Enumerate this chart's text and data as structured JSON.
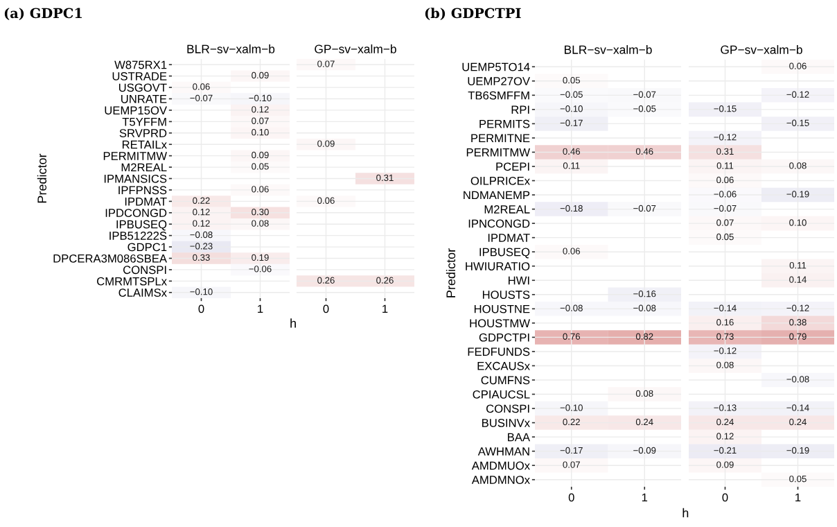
{
  "chart_data": [
    {
      "type": "heatmap",
      "title": "(a) GDPC1",
      "subtitle": "BLR−sv−xalm−b",
      "xlabel": "h",
      "ylabel": "Predictor",
      "grid": true,
      "categories": [
        "0",
        "1"
      ],
      "y_categories": [
        "W875RX1",
        "USTRADE",
        "USGOVT",
        "UNRATE",
        "UEMP15OV",
        "T5YFFM",
        "SRVPRD",
        "RETAILx",
        "PERMITMW",
        "M2REAL",
        "IPMANSICS",
        "IPFPNSS",
        "IPDMAT",
        "IPDCONGD",
        "IPBUSEQ",
        "IPB51222S",
        "GDPC1",
        "DPCERA3M086SBEA",
        "CONSPI",
        "CMRMTSPLx",
        "CLAIMSx"
      ],
      "cells": [
        [
          null,
          null
        ],
        [
          null,
          0.09
        ],
        [
          0.06,
          null
        ],
        [
          -0.07,
          -0.1
        ],
        [
          null,
          0.12
        ],
        [
          null,
          0.07
        ],
        [
          null,
          0.1
        ],
        [
          null,
          null
        ],
        [
          null,
          0.09
        ],
        [
          null,
          0.05
        ],
        [
          null,
          null
        ],
        [
          null,
          0.06
        ],
        [
          0.22,
          null
        ],
        [
          0.12,
          0.3
        ],
        [
          0.12,
          0.08
        ],
        [
          -0.08,
          null
        ],
        [
          -0.23,
          null
        ],
        [
          0.33,
          0.19
        ],
        [
          null,
          -0.06
        ],
        [
          null,
          null
        ],
        [
          -0.1,
          null
        ]
      ],
      "cell_labels": [
        [
          null,
          null
        ],
        [
          null,
          "0.09"
        ],
        [
          "0.06",
          null
        ],
        [
          "−0.07",
          "−0.10"
        ],
        [
          null,
          "0.12"
        ],
        [
          null,
          "0.07"
        ],
        [
          null,
          "0.10"
        ],
        [
          null,
          null
        ],
        [
          null,
          "0.09"
        ],
        [
          null,
          "0.05"
        ],
        [
          null,
          null
        ],
        [
          null,
          "0.06"
        ],
        [
          "0.22",
          null
        ],
        [
          "0.12",
          "0.30"
        ],
        [
          "0.12",
          "0.08"
        ],
        [
          "−0.08",
          null
        ],
        [
          "−0.23",
          null
        ],
        [
          "0.33",
          "0.19"
        ],
        [
          null,
          "−0.06"
        ],
        [
          null,
          null
        ],
        [
          "−0.10",
          null
        ]
      ]
    },
    {
      "type": "heatmap",
      "subtitle": "GP−sv−xalm−b",
      "grid": true,
      "tick_labels": "x",
      "categories": [
        "0",
        "1"
      ],
      "y_categories": [
        "W875RX1",
        "USTRADE",
        "USGOVT",
        "UNRATE",
        "UEMP15OV",
        "T5YFFM",
        "SRVPRD",
        "RETAILx",
        "PERMITMW",
        "M2REAL",
        "IPMANSICS",
        "IPFPNSS",
        "IPDMAT",
        "IPDCONGD",
        "IPBUSEQ",
        "IPB51222S",
        "GDPC1",
        "DPCERA3M086SBEA",
        "CONSPI",
        "CMRMTSPLx",
        "CLAIMSx"
      ],
      "cells": [
        [
          0.07,
          null
        ],
        [
          null,
          null
        ],
        [
          null,
          null
        ],
        [
          null,
          null
        ],
        [
          null,
          null
        ],
        [
          null,
          null
        ],
        [
          null,
          null
        ],
        [
          0.09,
          null
        ],
        [
          null,
          null
        ],
        [
          null,
          null
        ],
        [
          null,
          0.31
        ],
        [
          null,
          null
        ],
        [
          0.06,
          null
        ],
        [
          null,
          null
        ],
        [
          null,
          null
        ],
        [
          null,
          null
        ],
        [
          null,
          null
        ],
        [
          null,
          null
        ],
        [
          null,
          null
        ],
        [
          0.26,
          0.26
        ],
        [
          null,
          null
        ]
      ],
      "cell_labels": [
        [
          "0.07",
          null
        ],
        [
          null,
          null
        ],
        [
          null,
          null
        ],
        [
          null,
          null
        ],
        [
          null,
          null
        ],
        [
          null,
          null
        ],
        [
          null,
          null
        ],
        [
          "0.09",
          null
        ],
        [
          null,
          null
        ],
        [
          null,
          null
        ],
        [
          null,
          "0.31"
        ],
        [
          null,
          null
        ],
        [
          "0.06",
          null
        ],
        [
          null,
          null
        ],
        [
          null,
          null
        ],
        [
          null,
          null
        ],
        [
          null,
          null
        ],
        [
          null,
          null
        ],
        [
          null,
          null
        ],
        [
          "0.26",
          "0.26"
        ],
        [
          null,
          null
        ]
      ]
    },
    {
      "type": "heatmap",
      "title": "(b) GDPCTPI",
      "subtitle": "BLR−sv−xalm−b",
      "xlabel": "h",
      "ylabel": "Predictor",
      "grid": true,
      "categories": [
        "0",
        "1"
      ],
      "y_categories": [
        "UEMP5TO14",
        "UEMP27OV",
        "TB6SMFFM",
        "RPI",
        "PERMITS",
        "PERMITNE",
        "PERMITMW",
        "PCEPI",
        "OILPRICEx",
        "NDMANEMP",
        "M2REAL",
        "IPNCONGD",
        "IPDMAT",
        "IPBUSEQ",
        "HWIURATIO",
        "HWI",
        "HOUSTS",
        "HOUSTNE",
        "HOUSTMW",
        "GDPCTPI",
        "FEDFUNDS",
        "EXCAUSx",
        "CUMFNS",
        "CPIAUCSL",
        "CONSPI",
        "BUSINVx",
        "BAA",
        "AWHMAN",
        "AMDMUOx",
        "AMDMNOx"
      ],
      "cells": [
        [
          null,
          null
        ],
        [
          0.05,
          null
        ],
        [
          -0.05,
          -0.07
        ],
        [
          -0.1,
          -0.05
        ],
        [
          -0.17,
          null
        ],
        [
          null,
          null
        ],
        [
          0.46,
          0.46
        ],
        [
          0.11,
          null
        ],
        [
          null,
          null
        ],
        [
          null,
          null
        ],
        [
          -0.18,
          -0.07
        ],
        [
          null,
          null
        ],
        [
          null,
          null
        ],
        [
          0.06,
          null
        ],
        [
          null,
          null
        ],
        [
          null,
          null
        ],
        [
          null,
          -0.16
        ],
        [
          -0.08,
          -0.08
        ],
        [
          null,
          null
        ],
        [
          0.76,
          0.82
        ],
        [
          null,
          null
        ],
        [
          null,
          null
        ],
        [
          null,
          null
        ],
        [
          null,
          0.08
        ],
        [
          -0.1,
          null
        ],
        [
          0.22,
          0.24
        ],
        [
          null,
          null
        ],
        [
          -0.17,
          -0.09
        ],
        [
          0.07,
          null
        ],
        [
          null,
          null
        ]
      ],
      "cell_labels": [
        [
          null,
          null
        ],
        [
          "0.05",
          null
        ],
        [
          "−0.05",
          "−0.07"
        ],
        [
          "−0.10",
          "−0.05"
        ],
        [
          "−0.17",
          null
        ],
        [
          null,
          null
        ],
        [
          "0.46",
          "0.46"
        ],
        [
          "0.11",
          null
        ],
        [
          null,
          null
        ],
        [
          null,
          null
        ],
        [
          "−0.18",
          "−0.07"
        ],
        [
          null,
          null
        ],
        [
          null,
          null
        ],
        [
          "0.06",
          null
        ],
        [
          null,
          null
        ],
        [
          null,
          null
        ],
        [
          null,
          "−0.16"
        ],
        [
          "−0.08",
          "−0.08"
        ],
        [
          null,
          null
        ],
        [
          "0.76",
          "0.82"
        ],
        [
          null,
          null
        ],
        [
          null,
          null
        ],
        [
          null,
          null
        ],
        [
          null,
          "0.08"
        ],
        [
          "−0.10",
          null
        ],
        [
          "0.22",
          "0.24"
        ],
        [
          null,
          null
        ],
        [
          "−0.17",
          "−0.09"
        ],
        [
          "0.07",
          null
        ],
        [
          null,
          null
        ]
      ]
    },
    {
      "type": "heatmap",
      "subtitle": "GP−sv−xalm−b",
      "grid": true,
      "tick_labels": "x",
      "categories": [
        "0",
        "1"
      ],
      "y_categories": [
        "UEMP5TO14",
        "UEMP27OV",
        "TB6SMFFM",
        "RPI",
        "PERMITS",
        "PERMITNE",
        "PERMITMW",
        "PCEPI",
        "OILPRICEx",
        "NDMANEMP",
        "M2REAL",
        "IPNCONGD",
        "IPDMAT",
        "IPBUSEQ",
        "HWIURATIO",
        "HWI",
        "HOUSTS",
        "HOUSTNE",
        "HOUSTMW",
        "GDPCTPI",
        "FEDFUNDS",
        "EXCAUSx",
        "CUMFNS",
        "CPIAUCSL",
        "CONSPI",
        "BUSINVx",
        "BAA",
        "AWHMAN",
        "AMDMUOx",
        "AMDMNOx"
      ],
      "cells": [
        [
          null,
          0.06
        ],
        [
          null,
          null
        ],
        [
          null,
          -0.12
        ],
        [
          -0.15,
          null
        ],
        [
          null,
          -0.15
        ],
        [
          -0.12,
          null
        ],
        [
          0.31,
          null
        ],
        [
          0.11,
          0.08
        ],
        [
          0.06,
          null
        ],
        [
          -0.06,
          -0.19
        ],
        [
          -0.07,
          null
        ],
        [
          0.07,
          0.1
        ],
        [
          0.05,
          null
        ],
        [
          null,
          null
        ],
        [
          null,
          0.11
        ],
        [
          null,
          0.14
        ],
        [
          null,
          null
        ],
        [
          -0.14,
          -0.12
        ],
        [
          0.16,
          0.38
        ],
        [
          0.73,
          0.79
        ],
        [
          -0.12,
          null
        ],
        [
          0.08,
          null
        ],
        [
          null,
          -0.08
        ],
        [
          null,
          null
        ],
        [
          -0.13,
          -0.14
        ],
        [
          0.24,
          0.24
        ],
        [
          0.12,
          null
        ],
        [
          -0.21,
          -0.19
        ],
        [
          0.09,
          null
        ],
        [
          null,
          0.05
        ]
      ],
      "cell_labels": [
        [
          null,
          "0.06"
        ],
        [
          null,
          null
        ],
        [
          null,
          "−0.12"
        ],
        [
          "−0.15",
          null
        ],
        [
          null,
          "−0.15"
        ],
        [
          "−0.12",
          null
        ],
        [
          "0.31",
          null
        ],
        [
          "0.11",
          "0.08"
        ],
        [
          "0.06",
          null
        ],
        [
          "−0.06",
          "−0.19"
        ],
        [
          "−0.07",
          null
        ],
        [
          "0.07",
          "0.10"
        ],
        [
          "0.05",
          null
        ],
        [
          null,
          null
        ],
        [
          null,
          "0.11"
        ],
        [
          null,
          "0.14"
        ],
        [
          null,
          null
        ],
        [
          "−0.14",
          "−0.12"
        ],
        [
          "0.16",
          "0.38"
        ],
        [
          "0.73",
          "0.79"
        ],
        [
          "−0.12",
          null
        ],
        [
          "0.08",
          null
        ],
        [
          null,
          "−0.08"
        ],
        [
          null,
          null
        ],
        [
          "−0.13",
          "−0.14"
        ],
        [
          "0.24",
          "0.24"
        ],
        [
          "0.12",
          null
        ],
        [
          "−0.21",
          "−0.19"
        ],
        [
          "0.09",
          null
        ],
        [
          null,
          "0.05"
        ]
      ]
    }
  ]
}
